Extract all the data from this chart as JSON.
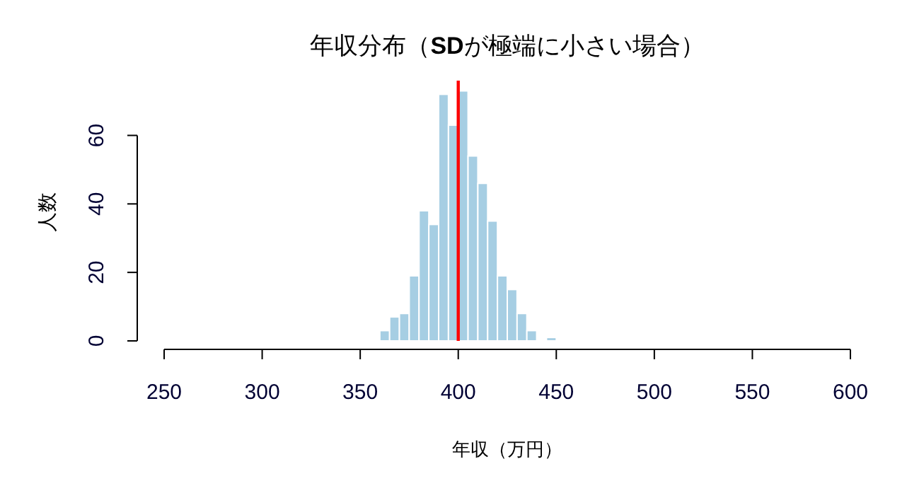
{
  "chart_data": {
    "type": "histogram",
    "title": "年収分布（**SD**が極端に小さい場合）",
    "xlabel": "年収（万円）",
    "ylabel": "人数",
    "bins": [
      360,
      365,
      370,
      375,
      380,
      385,
      390,
      395,
      400,
      405,
      410,
      415,
      420,
      425,
      430,
      435,
      440,
      445,
      450
    ],
    "values": [
      3,
      7,
      8,
      19,
      38,
      34,
      72,
      63,
      73,
      54,
      46,
      35,
      19,
      15,
      8,
      3,
      0,
      1
    ],
    "color": "#a6cee3",
    "xlim": [
      250,
      600
    ],
    "xticks": [
      250,
      300,
      350,
      400,
      450,
      500,
      550,
      600
    ],
    "ylim": [
      0,
      76
    ],
    "yticks": [
      0,
      20,
      40,
      60
    ],
    "ref_lines": [
      {
        "axis": "x",
        "value": 400,
        "color": "#ff0000"
      }
    ]
  }
}
